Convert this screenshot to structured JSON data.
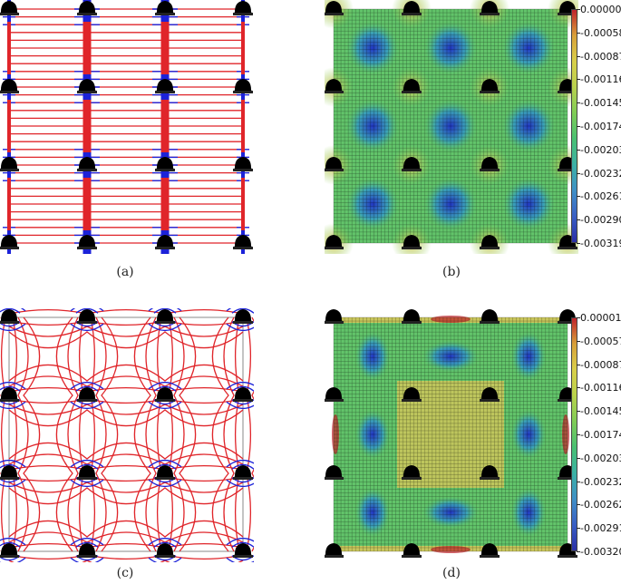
{
  "panels": {
    "a": {
      "caption": "(a)"
    },
    "b": {
      "caption": "(b)"
    },
    "c": {
      "caption": "(c)"
    },
    "d": {
      "caption": "(d)"
    }
  },
  "colorbar_b": {
    "ticks": [
      "0.00000",
      "-0.00058",
      "-0.00087",
      "-0.00116",
      "-0.00145",
      "-0.00174",
      "-0.00203",
      "-0.00232",
      "-0.00261",
      "-0.00290",
      "-0.00319"
    ],
    "colormap": [
      "#c0222a",
      "#d8a13a",
      "#d8cf4a",
      "#b9d24c",
      "#7fcc56",
      "#49c072",
      "#3bb2a4",
      "#3f90c6",
      "#3a5fc4",
      "#2a2fa6"
    ]
  },
  "colorbar_d": {
    "ticks": [
      "0.00001",
      "-0.00057",
      "-0.00087",
      "-0.00116",
      "-0.00145",
      "-0.00174",
      "-0.00203",
      "-0.00232",
      "-0.00262",
      "-0.00291",
      "-0.00320"
    ],
    "colormap": [
      "#c0222a",
      "#d8a13a",
      "#d8cf4a",
      "#b9d24c",
      "#7fcc56",
      "#49c072",
      "#3bb2a4",
      "#3f90c6",
      "#3a5fc4",
      "#2a2fa6"
    ]
  },
  "colors": {
    "red": "#e0252a",
    "blue": "#1c22d8",
    "support": "#000000",
    "field_low": "#2a3fb8",
    "field_mid": "#5ec46a",
    "field_high": "#d9c85a"
  }
}
